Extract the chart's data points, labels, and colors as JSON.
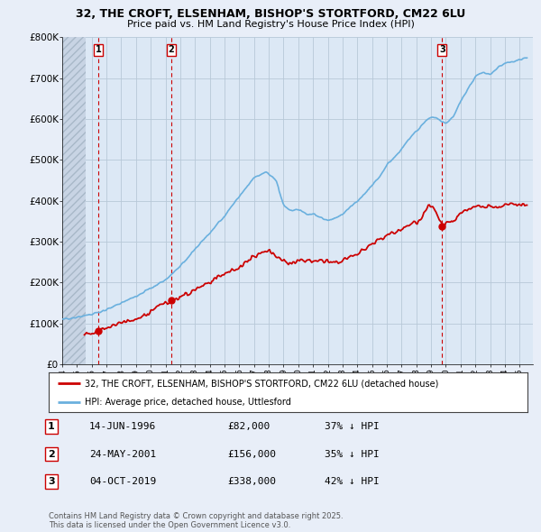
{
  "title_line1": "32, THE CROFT, ELSENHAM, BISHOP'S STORTFORD, CM22 6LU",
  "title_line2": "Price paid vs. HM Land Registry's House Price Index (HPI)",
  "ylim": [
    0,
    800000
  ],
  "yticks": [
    0,
    100000,
    200000,
    300000,
    400000,
    500000,
    600000,
    700000,
    800000
  ],
  "ytick_labels": [
    "£0",
    "£100K",
    "£200K",
    "£300K",
    "£400K",
    "£500K",
    "£600K",
    "£700K",
    "£800K"
  ],
  "xlim_start": 1994.0,
  "xlim_end": 2025.9,
  "hpi_color": "#6ab0de",
  "price_color": "#cc0000",
  "sale_marker_color": "#cc0000",
  "legend_label_price": "32, THE CROFT, ELSENHAM, BISHOP'S STORTFORD, CM22 6LU (detached house)",
  "legend_label_hpi": "HPI: Average price, detached house, Uttlesford",
  "sale1_label": "1",
  "sale1_date": "14-JUN-1996",
  "sale1_price": 82000,
  "sale1_pct": "37% ↓ HPI",
  "sale2_label": "2",
  "sale2_date": "24-MAY-2001",
  "sale2_price": 156000,
  "sale2_pct": "35% ↓ HPI",
  "sale3_label": "3",
  "sale3_date": "04-OCT-2019",
  "sale3_price": 338000,
  "sale3_pct": "42% ↓ HPI",
  "footer_line1": "Contains HM Land Registry data © Crown copyright and database right 2025.",
  "footer_line2": "This data is licensed under the Open Government Licence v3.0.",
  "background_color": "#e8eef8",
  "plot_bg_color": "#dce8f5",
  "grid_color": "#b8c8d8",
  "hatch_color": "#c8d4e4"
}
